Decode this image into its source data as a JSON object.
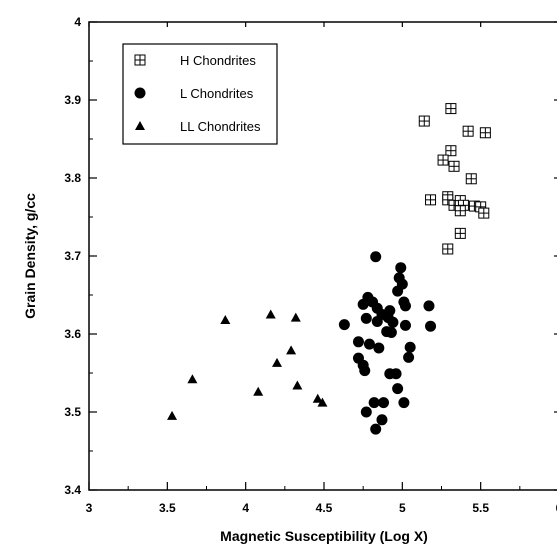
{
  "chart_data": {
    "type": "scatter",
    "xlabel": "Magnetic Susceptibility (Log X)",
    "ylabel": "Grain Density, g/cc",
    "xlim": [
      3,
      6
    ],
    "ylim": [
      3.4,
      4.0
    ],
    "x_ticks": [
      "3",
      "3.5",
      "4",
      "4.5",
      "5",
      "5.5",
      "6"
    ],
    "y_ticks": [
      "3.4",
      "3.5",
      "3.6",
      "3.7",
      "3.8",
      "3.9",
      "4"
    ],
    "legend_position": "top-left",
    "series": [
      {
        "name": "H Chondrites",
        "marker": "square-plus",
        "points": [
          [
            5.14,
            3.873
          ],
          [
            5.31,
            3.889
          ],
          [
            5.42,
            3.86
          ],
          [
            5.53,
            3.858
          ],
          [
            5.31,
            3.835
          ],
          [
            5.26,
            3.823
          ],
          [
            5.33,
            3.815
          ],
          [
            5.44,
            3.799
          ],
          [
            5.18,
            3.772
          ],
          [
            5.29,
            3.776
          ],
          [
            5.29,
            3.772
          ],
          [
            5.33,
            3.765
          ],
          [
            5.37,
            3.771
          ],
          [
            5.39,
            3.765
          ],
          [
            5.37,
            3.758
          ],
          [
            5.46,
            3.764
          ],
          [
            5.5,
            3.763
          ],
          [
            5.52,
            3.755
          ],
          [
            5.37,
            3.729
          ],
          [
            5.29,
            3.709
          ]
        ]
      },
      {
        "name": "L Chondrites",
        "marker": "circle",
        "points": [
          [
            4.83,
            3.699
          ],
          [
            4.99,
            3.685
          ],
          [
            4.98,
            3.672
          ],
          [
            5.0,
            3.664
          ],
          [
            4.97,
            3.655
          ],
          [
            4.78,
            3.647
          ],
          [
            4.81,
            3.641
          ],
          [
            4.75,
            3.638
          ],
          [
            5.01,
            3.641
          ],
          [
            5.02,
            3.636
          ],
          [
            5.17,
            3.636
          ],
          [
            4.84,
            3.633
          ],
          [
            4.92,
            3.63
          ],
          [
            4.87,
            3.625
          ],
          [
            4.91,
            3.621
          ],
          [
            4.77,
            3.62
          ],
          [
            4.84,
            3.616
          ],
          [
            4.94,
            3.615
          ],
          [
            4.63,
            3.612
          ],
          [
            5.02,
            3.611
          ],
          [
            5.18,
            3.61
          ],
          [
            4.9,
            3.603
          ],
          [
            4.93,
            3.602
          ],
          [
            4.72,
            3.59
          ],
          [
            4.79,
            3.587
          ],
          [
            4.85,
            3.582
          ],
          [
            5.05,
            3.583
          ],
          [
            4.72,
            3.569
          ],
          [
            5.04,
            3.57
          ],
          [
            4.75,
            3.56
          ],
          [
            4.76,
            3.553
          ],
          [
            4.92,
            3.549
          ],
          [
            4.96,
            3.549
          ],
          [
            4.97,
            3.53
          ],
          [
            4.82,
            3.512
          ],
          [
            4.88,
            3.512
          ],
          [
            5.01,
            3.512
          ],
          [
            4.77,
            3.5
          ],
          [
            4.87,
            3.49
          ],
          [
            4.83,
            3.478
          ]
        ]
      },
      {
        "name": "LL Chondrites",
        "marker": "triangle",
        "points": [
          [
            3.87,
            3.618
          ],
          [
            4.16,
            3.625
          ],
          [
            4.32,
            3.621
          ],
          [
            4.29,
            3.579
          ],
          [
            4.2,
            3.563
          ],
          [
            3.66,
            3.542
          ],
          [
            4.33,
            3.534
          ],
          [
            4.08,
            3.526
          ],
          [
            4.46,
            3.517
          ],
          [
            4.49,
            3.512
          ],
          [
            3.53,
            3.495
          ]
        ]
      }
    ]
  }
}
